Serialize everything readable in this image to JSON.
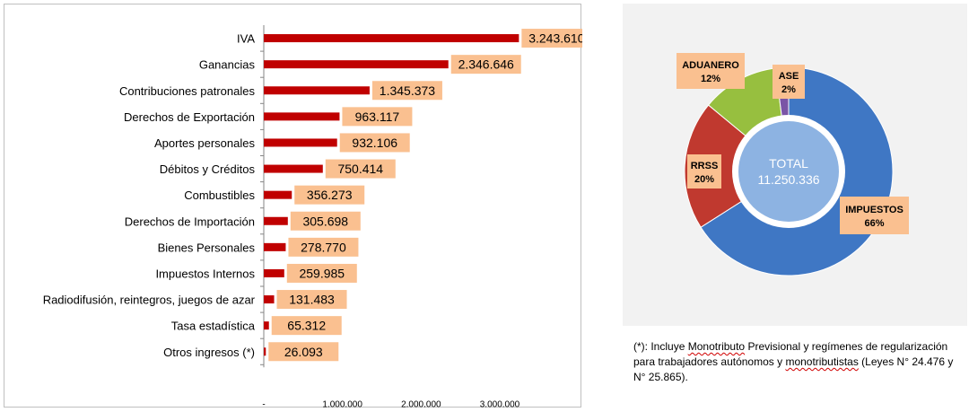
{
  "colors": {
    "bar": "#c00000",
    "label_bg": "#fac090",
    "axis": "#868686",
    "impuestos": "#3f77c4",
    "rrss": "#c0392f",
    "aduanero": "#97bf3f",
    "ase": "#7a55a6",
    "center": "#8db3e2"
  },
  "chart_data": [
    {
      "type": "bar",
      "orientation": "horizontal",
      "categories": [
        "IVA",
        "Ganancias",
        "Contribuciones patronales",
        "Derechos de Exportación",
        "Aportes personales",
        "Débitos y Créditos",
        "Combustibles",
        "Derechos de Importación",
        "Bienes Personales",
        "Impuestos Internos",
        "Radiodifusión, reintegros, juegos de azar",
        "Tasa estadística",
        "Otros ingresos (*)"
      ],
      "values": [
        3243610,
        2346646,
        1345373,
        963117,
        932106,
        750414,
        356273,
        305698,
        278770,
        259985,
        131483,
        65312,
        26093
      ],
      "value_labels": [
        "3.243.610",
        "2.346.646",
        "1.345.373",
        "963.117",
        "932.106",
        "750.414",
        "356.273",
        "305.698",
        "278.770",
        "259.985",
        "131.483",
        "65.312",
        "26.093"
      ],
      "xlim": [
        0,
        3500000
      ],
      "xticks": [
        0,
        1000000,
        2000000,
        3000000
      ],
      "xtick_labels": [
        "-",
        "1.000.000",
        "2.000.000",
        "3.000.000"
      ],
      "grid": false
    },
    {
      "type": "pie",
      "donut": true,
      "labels": [
        "IMPUESTOS",
        "RRSS",
        "ADUANERO",
        "ASE"
      ],
      "percent_labels": [
        "66%",
        "20%",
        "12%",
        "2%"
      ],
      "values": [
        66,
        20,
        12,
        2
      ],
      "center_title": "TOTAL",
      "center_value": "11.250.336"
    }
  ],
  "footnote": {
    "marker": "(*):",
    "w1": "Incluye",
    "w2": "Monotributo",
    "w3": "Previsional y regímenes de regularización para trabajadores autónomos y",
    "w4": "monotributistas",
    "w5": "(Leyes N° 24.476 y N° 25.865)."
  }
}
